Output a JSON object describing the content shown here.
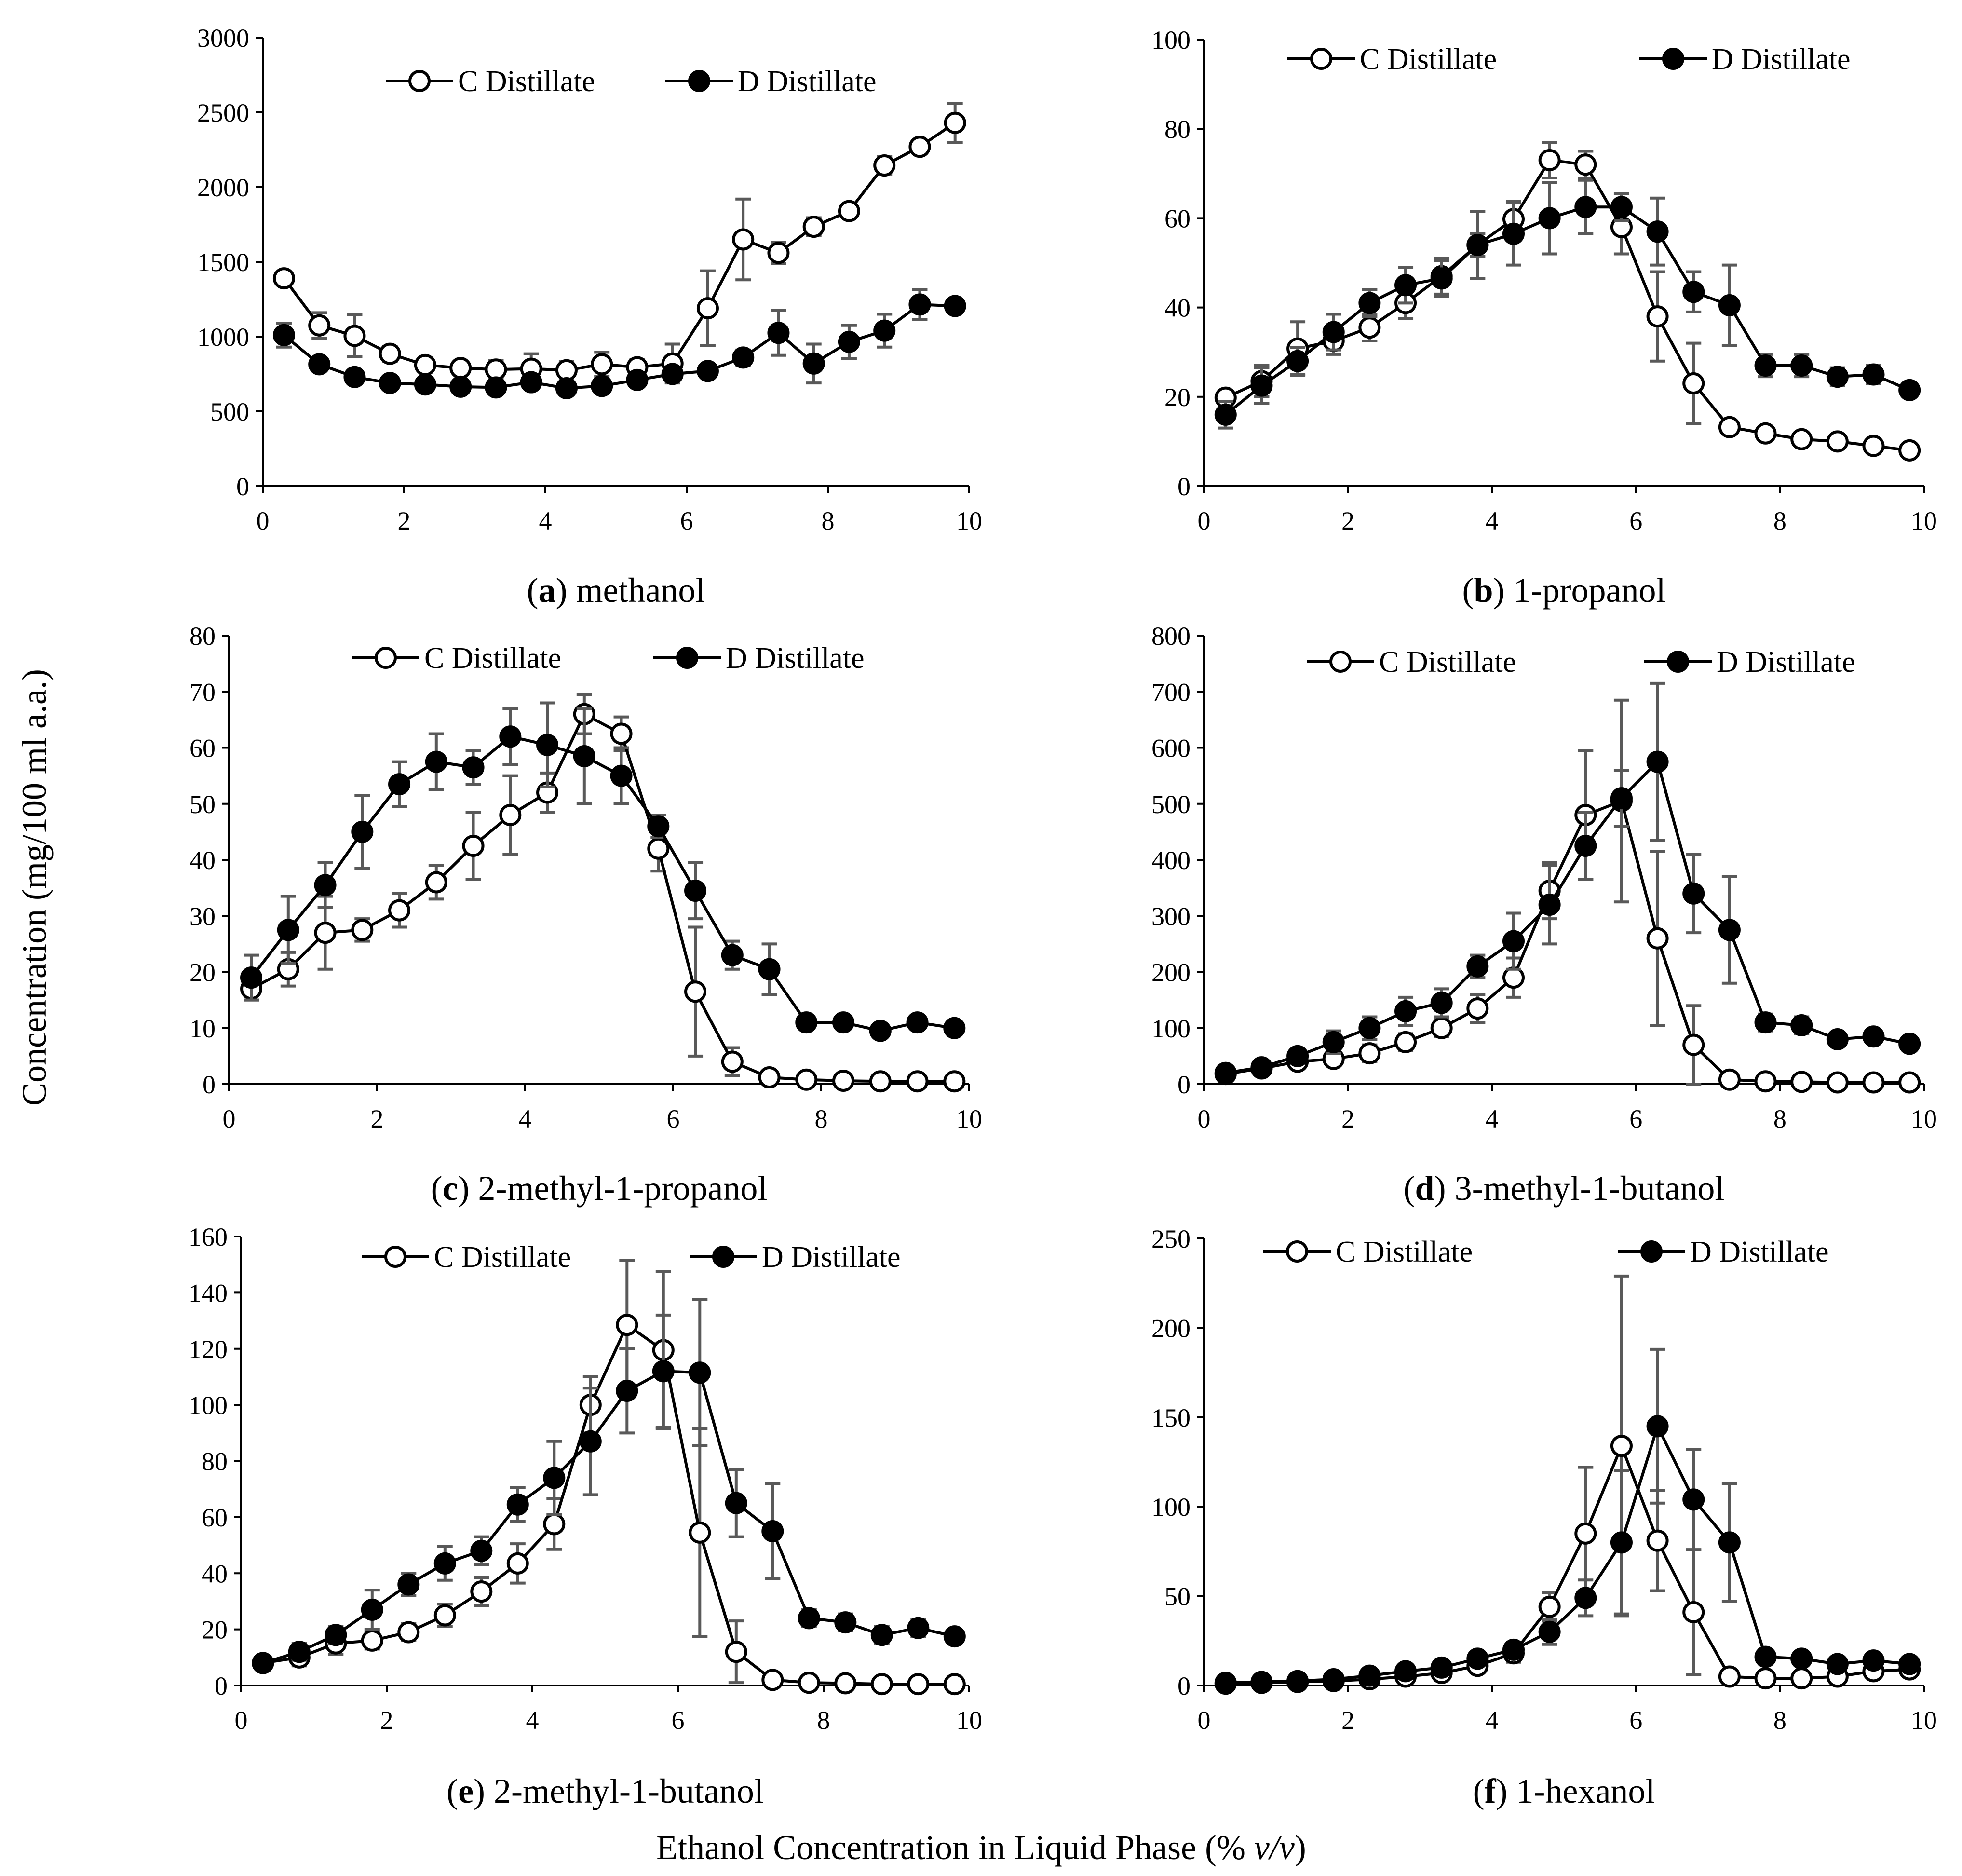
{
  "figure": {
    "y_axis_label": "Concentration (mg/100 ml a.a.)",
    "x_axis_label_main": "Ethanol Concentration in Liquid Phase (% ",
    "x_axis_label_italic": "v/v",
    "x_axis_label_close": ")"
  },
  "chart_data": [
    {
      "type": "line",
      "caption_letter": "(a",
      "caption_rest": ") methanol",
      "x": [
        0.3,
        0.8,
        1.3,
        1.8,
        2.3,
        2.8,
        3.3,
        3.8,
        4.3,
        4.8,
        5.3,
        5.8,
        6.3,
        6.8,
        7.3,
        7.8,
        8.3,
        8.8,
        9.3,
        9.8
      ],
      "xlim": [
        0,
        10
      ],
      "xticks": [
        0,
        2,
        4,
        6,
        8,
        10
      ],
      "ylim": [
        0,
        3000
      ],
      "yticks": [
        0,
        500,
        1000,
        1500,
        2000,
        2500,
        3000
      ],
      "grid": false,
      "legend_position": "top",
      "series": [
        {
          "name": "C Distillate",
          "marker": "open",
          "values": [
            1390,
            1075,
            1005,
            885,
            810,
            790,
            780,
            785,
            775,
            815,
            795,
            820,
            1190,
            1650,
            1560,
            1735,
            1840,
            2145,
            2270,
            2430
          ],
          "errors": [
            0,
            85,
            140,
            50,
            40,
            40,
            60,
            100,
            60,
            80,
            50,
            130,
            250,
            270,
            70,
            60,
            40,
            60,
            30,
            130
          ]
        },
        {
          "name": "D Distillate",
          "marker": "filled",
          "values": [
            1010,
            815,
            730,
            690,
            680,
            665,
            660,
            695,
            655,
            670,
            710,
            750,
            770,
            860,
            1025,
            820,
            965,
            1040,
            1215,
            1205
          ],
          "errors": [
            80,
            30,
            30,
            30,
            30,
            30,
            30,
            30,
            30,
            30,
            40,
            40,
            40,
            50,
            150,
            130,
            110,
            110,
            100,
            30
          ]
        }
      ]
    },
    {
      "type": "line",
      "caption_letter": "(b",
      "caption_rest": ") 1-propanol",
      "x": [
        0.3,
        0.8,
        1.3,
        1.8,
        2.3,
        2.8,
        3.3,
        3.8,
        4.3,
        4.8,
        5.3,
        5.8,
        6.3,
        6.8,
        7.3,
        7.8,
        8.3,
        8.8,
        9.3,
        9.8
      ],
      "xlim": [
        0,
        10
      ],
      "xticks": [
        0,
        2,
        4,
        6,
        8,
        10
      ],
      "ylim": [
        0,
        100
      ],
      "yticks": [
        0,
        20,
        40,
        60,
        80,
        100
      ],
      "grid": false,
      "legend_position": "top",
      "series": [
        {
          "name": "C Distillate",
          "marker": "open",
          "values": [
            19.8,
            23.5,
            30.8,
            32.5,
            35.5,
            41.0,
            47.0,
            54.0,
            59.8,
            73.0,
            72.0,
            58.0,
            38.0,
            23.0,
            13.2,
            11.8,
            10.5,
            10.0,
            9.0,
            8.0
          ],
          "errors": [
            1.5,
            3.5,
            6.0,
            3.0,
            3.0,
            3.5,
            4.0,
            7.5,
            4.0,
            4.0,
            3.0,
            6.0,
            10.0,
            9.0,
            1.0,
            1.0,
            1.0,
            1.0,
            1.0,
            1.0
          ]
        },
        {
          "name": "D Distillate",
          "marker": "filled",
          "values": [
            16.0,
            22.5,
            28.0,
            34.5,
            41.0,
            45.0,
            46.5,
            54.0,
            56.5,
            60.0,
            62.5,
            62.5,
            57.0,
            43.5,
            40.5,
            27.0,
            27.0,
            24.5,
            25.0,
            21.5
          ],
          "errors": [
            3.0,
            4.0,
            3.0,
            4.0,
            3.0,
            4.0,
            4.0,
            2.5,
            7.0,
            8.0,
            6.0,
            3.0,
            7.5,
            4.5,
            9.0,
            2.5,
            2.5,
            2.0,
            2.0,
            1.5
          ]
        }
      ]
    },
    {
      "type": "line",
      "caption_letter": "(c",
      "caption_rest": ") 2-methyl-1-propanol",
      "x": [
        0.3,
        0.8,
        1.3,
        1.8,
        2.3,
        2.8,
        3.3,
        3.8,
        4.3,
        4.8,
        5.3,
        5.8,
        6.3,
        6.8,
        7.3,
        7.8,
        8.3,
        8.8,
        9.3,
        9.8
      ],
      "xlim": [
        0,
        10
      ],
      "xticks": [
        0,
        2,
        4,
        6,
        8,
        10
      ],
      "ylim": [
        0,
        80
      ],
      "yticks": [
        0,
        10,
        20,
        30,
        40,
        50,
        60,
        70,
        80
      ],
      "grid": false,
      "legend_position": "top",
      "series": [
        {
          "name": "C Distillate",
          "marker": "open",
          "values": [
            17.0,
            20.5,
            27.0,
            27.5,
            31.0,
            36.0,
            42.5,
            48.0,
            52.0,
            66.0,
            62.5,
            42.0,
            16.5,
            4.0,
            1.2,
            0.8,
            0.6,
            0.5,
            0.5,
            0.5
          ],
          "errors": [
            2.0,
            3.0,
            6.5,
            2.0,
            3.0,
            3.0,
            6.0,
            7.0,
            3.5,
            3.5,
            3.0,
            4.0,
            11.5,
            2.5,
            0.5,
            0.3,
            0.3,
            0.3,
            0.3,
            0.3
          ]
        },
        {
          "name": "D Distillate",
          "marker": "filled",
          "values": [
            19.0,
            27.5,
            35.5,
            45.0,
            53.5,
            57.5,
            56.5,
            62.0,
            60.5,
            58.5,
            55.0,
            46.0,
            34.5,
            23.0,
            20.5,
            11.0,
            11.0,
            9.5,
            11.0,
            10.0
          ],
          "errors": [
            4.0,
            6.0,
            4.0,
            6.5,
            4.0,
            5.0,
            3.0,
            5.0,
            7.5,
            8.5,
            5.0,
            2.0,
            5.0,
            2.5,
            4.5,
            1.0,
            1.0,
            1.0,
            1.0,
            1.0
          ]
        }
      ]
    },
    {
      "type": "line",
      "caption_letter": "(d",
      "caption_rest": ") 3-methyl-1-butanol",
      "x": [
        0.3,
        0.8,
        1.3,
        1.8,
        2.3,
        2.8,
        3.3,
        3.8,
        4.3,
        4.8,
        5.3,
        5.8,
        6.3,
        6.8,
        7.3,
        7.8,
        8.3,
        8.8,
        9.3,
        9.8
      ],
      "xlim": [
        0,
        10
      ],
      "xticks": [
        0,
        2,
        4,
        6,
        8,
        10
      ],
      "ylim": [
        0,
        800
      ],
      "yticks": [
        0,
        100,
        200,
        300,
        400,
        500,
        600,
        700,
        800
      ],
      "grid": false,
      "legend_position": "top",
      "series": [
        {
          "name": "C Distillate",
          "marker": "open",
          "values": [
            18,
            28,
            40,
            45,
            55,
            75,
            100,
            135,
            190,
            345,
            480,
            505,
            260,
            70,
            8,
            5,
            4,
            3,
            3,
            3
          ],
          "errors": [
            5,
            8,
            10,
            10,
            15,
            15,
            15,
            25,
            35,
            50,
            115,
            180,
            155,
            70,
            5,
            2,
            2,
            2,
            2,
            2
          ]
        },
        {
          "name": "D Distillate",
          "marker": "filled",
          "values": [
            20,
            30,
            50,
            75,
            100,
            130,
            145,
            210,
            255,
            320,
            425,
            510,
            575,
            340,
            275,
            110,
            105,
            80,
            85,
            72
          ],
          "errors": [
            5,
            8,
            10,
            20,
            20,
            25,
            25,
            20,
            50,
            70,
            60,
            50,
            140,
            70,
            95,
            15,
            15,
            10,
            10,
            10
          ]
        }
      ]
    },
    {
      "type": "line",
      "caption_letter": "(e",
      "caption_rest": ") 2-methyl-1-butanol",
      "x": [
        0.3,
        0.8,
        1.3,
        1.8,
        2.3,
        2.8,
        3.3,
        3.8,
        4.3,
        4.8,
        5.3,
        5.8,
        6.3,
        6.8,
        7.3,
        7.8,
        8.3,
        8.8,
        9.3,
        9.8
      ],
      "xlim": [
        0,
        10
      ],
      "xticks": [
        0,
        2,
        4,
        6,
        8,
        10
      ],
      "ylim": [
        0,
        160
      ],
      "yticks": [
        0,
        20,
        40,
        60,
        80,
        100,
        120,
        140,
        160
      ],
      "grid": false,
      "legend_position": "top",
      "series": [
        {
          "name": "C Distillate",
          "marker": "open",
          "values": [
            8,
            10,
            15,
            16,
            19,
            25,
            33.5,
            43.5,
            57.5,
            100,
            128.5,
            119.5,
            54.5,
            12,
            2,
            1,
            0.8,
            0.5,
            0.5,
            0.5
          ],
          "errors": [
            2,
            3,
            4,
            3,
            3,
            4,
            5,
            7,
            9,
            10,
            23,
            28,
            37,
            11,
            1,
            0.5,
            0.5,
            0.5,
            0.5,
            0.5
          ]
        },
        {
          "name": "D Distillate",
          "marker": "filled",
          "values": [
            8,
            12,
            18,
            27,
            36,
            43.5,
            48,
            64.5,
            74,
            87,
            105,
            112,
            111.5,
            65,
            55,
            24,
            22.5,
            18,
            20.5,
            17.5
          ],
          "errors": [
            2,
            3,
            3,
            7,
            4,
            6,
            5,
            6,
            13,
            19,
            15,
            20,
            26,
            12,
            17,
            3,
            3,
            3,
            3,
            2
          ]
        }
      ]
    },
    {
      "type": "line",
      "caption_letter": "(f",
      "caption_rest": ") 1-hexanol",
      "x": [
        0.3,
        0.8,
        1.3,
        1.8,
        2.3,
        2.8,
        3.3,
        3.8,
        4.3,
        4.8,
        5.3,
        5.8,
        6.3,
        6.8,
        7.3,
        7.8,
        8.3,
        8.8,
        9.3,
        9.8
      ],
      "xlim": [
        0,
        10
      ],
      "xticks": [
        0,
        2,
        4,
        6,
        8,
        10
      ],
      "ylim": [
        0,
        250
      ],
      "yticks": [
        0,
        50,
        100,
        150,
        200,
        250
      ],
      "grid": false,
      "legend_position": "top",
      "series": [
        {
          "name": "C Distillate",
          "marker": "open",
          "values": [
            1,
            1.5,
            2,
            2.5,
            3.5,
            5,
            7,
            11,
            18,
            44,
            85,
            134,
            81,
            41,
            5,
            4,
            4,
            5,
            8,
            9
          ],
          "errors": [
            0.5,
            0.5,
            0.5,
            1,
            1,
            1,
            2,
            3,
            5,
            8,
            37,
            95,
            28,
            35,
            2,
            2,
            2,
            2,
            2,
            2
          ]
        },
        {
          "name": "D Distillate",
          "marker": "filled",
          "values": [
            1.5,
            2,
            2.5,
            3.5,
            5.5,
            8,
            10,
            15,
            20,
            30,
            49,
            80,
            145,
            104,
            80,
            16,
            15,
            12,
            14,
            12
          ],
          "errors": [
            0.5,
            0.5,
            0.5,
            1,
            1,
            2,
            2,
            3,
            4,
            7,
            10,
            40,
            43,
            28,
            33,
            4,
            3,
            3,
            3,
            3
          ]
        }
      ]
    }
  ]
}
